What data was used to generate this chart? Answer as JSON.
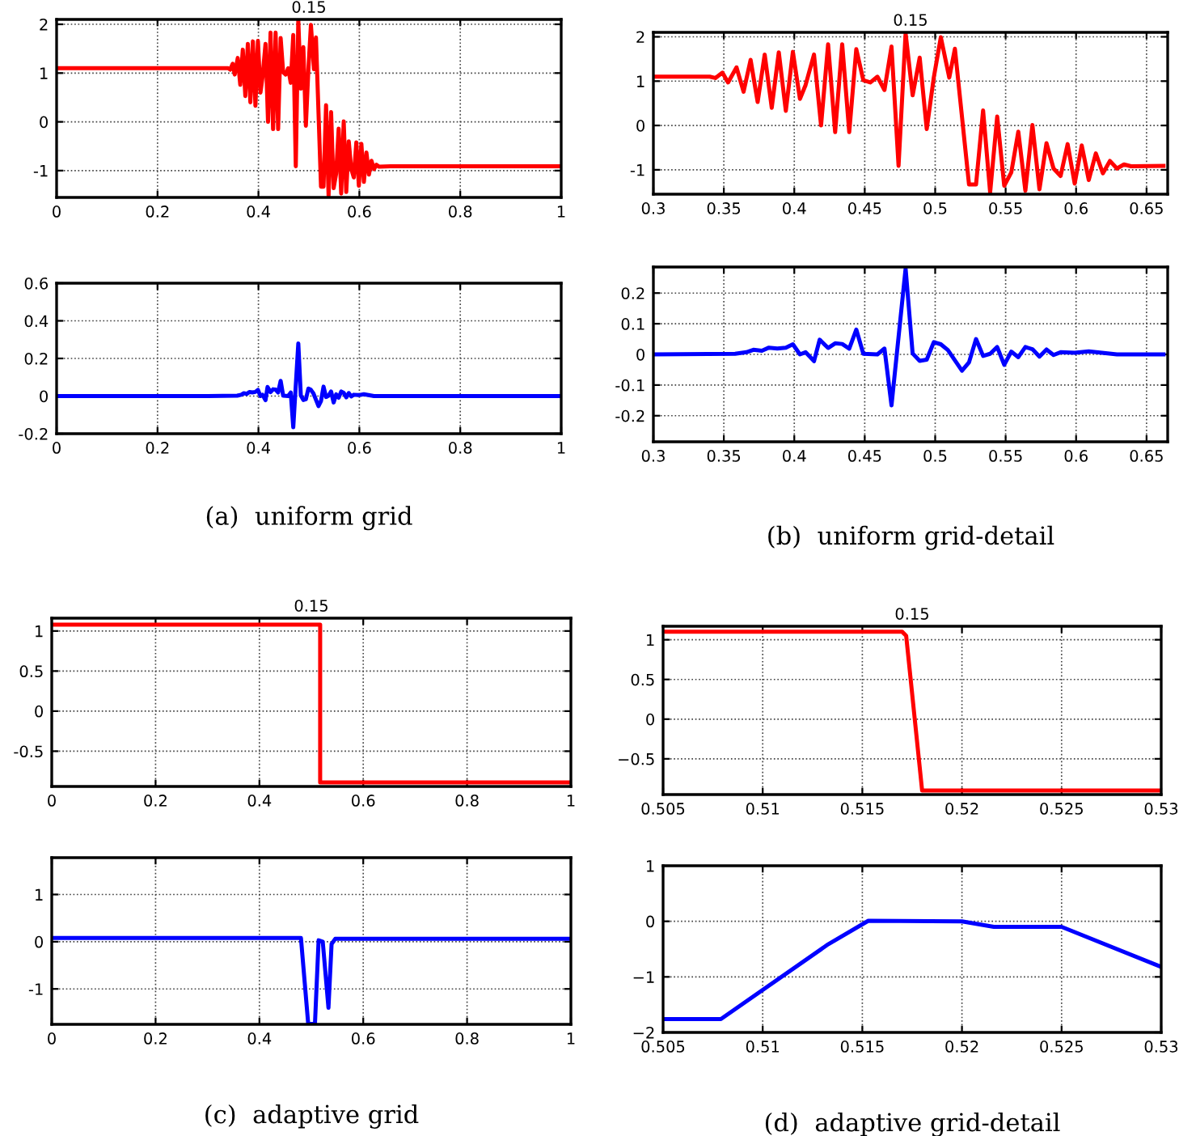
{
  "chart_data": [
    {
      "type": "line",
      "title": "0.15",
      "xlim": [
        0,
        1
      ],
      "xticks": [
        0,
        0.2,
        0.4,
        0.6,
        0.8,
        1
      ],
      "ylim": [
        -1.55,
        2.1
      ],
      "yticks": [
        -1,
        0,
        1,
        2
      ],
      "grid": true,
      "line_style": "solid",
      "series": [
        {
          "color": "#ff0000",
          "x": [
            0,
            0.3,
            0.34,
            0.344,
            0.349,
            0.353,
            0.359,
            0.364,
            0.369,
            0.374,
            0.379,
            0.384,
            0.389,
            0.394,
            0.399,
            0.404,
            0.408,
            0.414,
            0.419,
            0.424,
            0.429,
            0.434,
            0.439,
            0.444,
            0.449,
            0.454,
            0.459,
            0.464,
            0.469,
            0.474,
            0.479,
            0.484,
            0.489,
            0.494,
            0.499,
            0.504,
            0.51,
            0.514,
            0.524,
            0.529,
            0.534,
            0.539,
            0.544,
            0.549,
            0.554,
            0.559,
            0.564,
            0.569,
            0.574,
            0.579,
            0.584,
            0.589,
            0.594,
            0.599,
            0.604,
            0.609,
            0.614,
            0.619,
            0.624,
            0.629,
            0.634,
            0.639,
            0.662,
            1
          ],
          "values": [
            1.1,
            1.1,
            1.1,
            1.07,
            1.19,
            0.97,
            1.31,
            0.76,
            1.48,
            0.53,
            1.6,
            0.4,
            1.65,
            0.33,
            1.66,
            0.6,
            0.91,
            1.6,
            0.0,
            1.83,
            -0.15,
            1.83,
            -0.15,
            1.72,
            1.02,
            0.97,
            1.1,
            0.8,
            1.78,
            -0.91,
            2.08,
            0.68,
            1.53,
            -0.08,
            1.08,
            1.99,
            1.08,
            1.73,
            -1.33,
            -1.33,
            0.34,
            -1.51,
            0.2,
            -1.36,
            -1.06,
            -0.14,
            -1.47,
            0.01,
            -1.44,
            -0.4,
            -0.97,
            -1.14,
            -0.42,
            -1.31,
            -0.45,
            -1.23,
            -0.63,
            -1.08,
            -0.8,
            -0.97,
            -0.88,
            -0.92,
            -0.91,
            -0.91
          ]
        }
      ]
    },
    {
      "type": "line",
      "xlim": [
        0,
        1
      ],
      "xticks": [
        0,
        0.2,
        0.4,
        0.6,
        0.8,
        1
      ],
      "ylim": [
        -0.2,
        0.6
      ],
      "yticks": [
        -0.2,
        0,
        0.2,
        0.4,
        0.6
      ],
      "grid": true,
      "line_style": "solid",
      "annotations": [
        "(a)  uniform grid"
      ],
      "series": [
        {
          "color": "#0000ff",
          "x": [
            0,
            0.3,
            0.358,
            0.366,
            0.371,
            0.377,
            0.382,
            0.388,
            0.394,
            0.399,
            0.404,
            0.408,
            0.414,
            0.418,
            0.424,
            0.429,
            0.434,
            0.439,
            0.444,
            0.449,
            0.459,
            0.464,
            0.469,
            0.479,
            0.484,
            0.489,
            0.494,
            0.499,
            0.504,
            0.509,
            0.519,
            0.524,
            0.529,
            0.534,
            0.539,
            0.544,
            0.549,
            0.554,
            0.559,
            0.564,
            0.569,
            0.574,
            0.579,
            0.584,
            0.589,
            0.599,
            0.609,
            0.629,
            0.662,
            1
          ],
          "values": [
            0,
            0,
            0.002,
            0.007,
            0.015,
            0.012,
            0.022,
            0.019,
            0.022,
            0.033,
            0.0,
            0.007,
            -0.022,
            0.048,
            0.021,
            0.036,
            0.034,
            0.019,
            0.081,
            0.002,
            0,
            0.019,
            -0.166,
            0.28,
            0.003,
            -0.021,
            -0.017,
            0.04,
            0.033,
            0.014,
            -0.053,
            -0.026,
            0.05,
            -0.005,
            0.002,
            0.024,
            -0.034,
            0.009,
            -0.009,
            0.024,
            0.017,
            -0.007,
            0.016,
            -0.002,
            0.007,
            0.005,
            0.01,
            0,
            0,
            0
          ]
        }
      ]
    },
    {
      "type": "line",
      "title": "0.15",
      "xlim": [
        0.3,
        0.665
      ],
      "xticks": [
        0.3,
        0.35,
        0.4,
        0.45,
        0.5,
        0.55,
        0.6,
        0.65
      ],
      "ylim": [
        -1.55,
        2.1
      ],
      "yticks": [
        -1,
        0,
        1,
        2
      ],
      "grid": true,
      "line_style": "solid",
      "series": [
        {
          "color": "#ff0000",
          "x": [
            0.3,
            0.34,
            0.344,
            0.349,
            0.353,
            0.359,
            0.364,
            0.369,
            0.374,
            0.379,
            0.384,
            0.389,
            0.394,
            0.399,
            0.404,
            0.408,
            0.414,
            0.419,
            0.424,
            0.429,
            0.434,
            0.439,
            0.444,
            0.449,
            0.454,
            0.459,
            0.464,
            0.469,
            0.474,
            0.479,
            0.484,
            0.489,
            0.494,
            0.499,
            0.504,
            0.51,
            0.514,
            0.524,
            0.529,
            0.534,
            0.539,
            0.544,
            0.549,
            0.554,
            0.559,
            0.564,
            0.569,
            0.574,
            0.579,
            0.584,
            0.589,
            0.594,
            0.599,
            0.604,
            0.609,
            0.614,
            0.619,
            0.624,
            0.629,
            0.634,
            0.639,
            0.662
          ],
          "values": [
            1.1,
            1.1,
            1.07,
            1.19,
            0.97,
            1.31,
            0.76,
            1.48,
            0.53,
            1.6,
            0.4,
            1.65,
            0.33,
            1.66,
            0.6,
            0.91,
            1.6,
            0.0,
            1.83,
            -0.15,
            1.83,
            -0.15,
            1.72,
            1.02,
            0.97,
            1.1,
            0.8,
            1.78,
            -0.91,
            2.08,
            0.68,
            1.53,
            -0.08,
            1.08,
            1.99,
            1.08,
            1.73,
            -1.33,
            -1.33,
            0.34,
            -1.51,
            0.2,
            -1.36,
            -1.06,
            -0.14,
            -1.47,
            0.01,
            -1.44,
            -0.4,
            -0.97,
            -1.14,
            -0.42,
            -1.31,
            -0.45,
            -1.23,
            -0.63,
            -1.08,
            -0.8,
            -0.97,
            -0.88,
            -0.92,
            -0.91
          ]
        }
      ]
    },
    {
      "type": "line",
      "xlim": [
        0.3,
        0.665
      ],
      "xticks": [
        0.3,
        0.35,
        0.4,
        0.45,
        0.5,
        0.55,
        0.6,
        0.65
      ],
      "ylim": [
        -0.285,
        0.285
      ],
      "yticks": [
        -0.2,
        -0.1,
        0,
        0.1,
        0.2
      ],
      "grid": true,
      "line_style": "solid",
      "annotations": [
        "(b)  uniform grid-detail"
      ],
      "series": [
        {
          "color": "#0000ff",
          "x": [
            0.3,
            0.358,
            0.366,
            0.371,
            0.377,
            0.382,
            0.388,
            0.394,
            0.399,
            0.404,
            0.408,
            0.414,
            0.418,
            0.424,
            0.429,
            0.434,
            0.439,
            0.444,
            0.449,
            0.459,
            0.464,
            0.469,
            0.479,
            0.484,
            0.489,
            0.494,
            0.499,
            0.504,
            0.509,
            0.519,
            0.524,
            0.529,
            0.534,
            0.539,
            0.544,
            0.549,
            0.554,
            0.559,
            0.564,
            0.569,
            0.574,
            0.579,
            0.584,
            0.589,
            0.599,
            0.609,
            0.629,
            0.662
          ],
          "values": [
            0,
            0.002,
            0.007,
            0.015,
            0.012,
            0.022,
            0.019,
            0.022,
            0.033,
            0.0,
            0.007,
            -0.022,
            0.048,
            0.021,
            0.036,
            0.034,
            0.019,
            0.081,
            0.002,
            0,
            0.019,
            -0.166,
            0.28,
            0.003,
            -0.021,
            -0.017,
            0.04,
            0.033,
            0.014,
            -0.053,
            -0.026,
            0.05,
            -0.005,
            0.002,
            0.024,
            -0.034,
            0.009,
            -0.009,
            0.024,
            0.017,
            -0.007,
            0.016,
            -0.002,
            0.007,
            0.005,
            0.01,
            0,
            0
          ]
        }
      ]
    },
    {
      "type": "line",
      "title": "0.15",
      "xlim": [
        0,
        1
      ],
      "xticks": [
        0,
        0.2,
        0.4,
        0.6,
        0.8,
        1
      ],
      "ylim": [
        -0.94,
        1.16
      ],
      "yticks": [
        -0.5,
        0,
        0.5,
        1
      ],
      "grid": true,
      "line_style": "solid",
      "series": [
        {
          "color": "#ff0000",
          "x": [
            0,
            0.517,
            0.517,
            1
          ],
          "values": [
            1.08,
            1.08,
            -0.89,
            -0.89
          ]
        }
      ]
    },
    {
      "type": "line",
      "xlim": [
        0,
        1
      ],
      "xticks": [
        0,
        0.2,
        0.4,
        0.6,
        0.8,
        1
      ],
      "ylim": [
        -1.75,
        1.78
      ],
      "yticks": [
        -1,
        0,
        1
      ],
      "grid": true,
      "line_style": "solid",
      "annotations": [
        "(c)  adaptive grid"
      ],
      "series": [
        {
          "color": "#0000ff",
          "x": [
            0,
            0.48,
            0.494,
            0.507,
            0.514,
            0.522,
            0.533,
            0.539,
            0.546,
            1
          ],
          "values": [
            0.08,
            0.08,
            -1.74,
            -1.74,
            0.03,
            0.0,
            -1.4,
            -0.05,
            0.06,
            0.06
          ]
        }
      ]
    },
    {
      "type": "line",
      "title": "0.15",
      "xlim": [
        0.505,
        0.53
      ],
      "xticks": [
        0.505,
        0.51,
        0.515,
        0.52,
        0.525,
        0.53
      ],
      "ylim": [
        -0.95,
        1.17
      ],
      "yticks": [
        {
          "value": -0.5,
          "label": "−0.5"
        },
        0,
        0.5,
        1
      ],
      "grid": true,
      "line_style": "solid",
      "series": [
        {
          "color": "#ff0000",
          "x": [
            0.505,
            0.517,
            0.5172,
            0.518,
            0.53
          ],
          "values": [
            1.1,
            1.1,
            1.05,
            -0.9,
            -0.9
          ]
        }
      ]
    },
    {
      "type": "line",
      "xlim": [
        0.505,
        0.53
      ],
      "xticks": [
        0.505,
        0.51,
        0.515,
        0.52,
        0.525,
        0.53
      ],
      "ylim": [
        -2,
        1
      ],
      "yticks": [
        {
          "value": -2,
          "label": "−2"
        },
        {
          "value": -1,
          "label": "−1"
        },
        0,
        1
      ],
      "grid": true,
      "line_style": "solid",
      "annotations": [
        "(d)  adaptive grid-detail"
      ],
      "series": [
        {
          "color": "#0000ff",
          "x": [
            0.505,
            0.5079,
            0.5133,
            0.5153,
            0.52,
            0.5216,
            0.525,
            0.53
          ],
          "values": [
            -1.76,
            -1.76,
            -0.41,
            0.01,
            0.0,
            -0.1,
            -0.1,
            -0.82
          ]
        }
      ]
    }
  ]
}
